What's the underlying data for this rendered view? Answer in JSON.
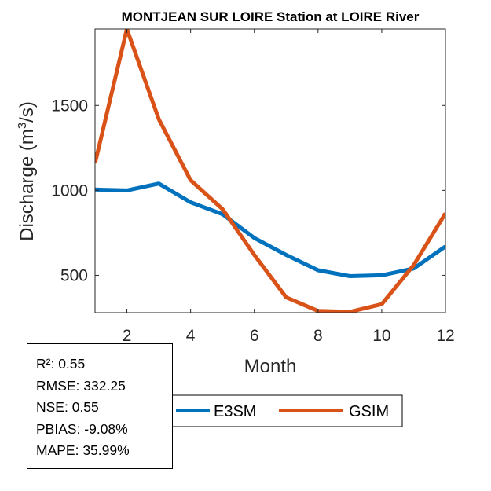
{
  "chart_data": {
    "type": "line",
    "title": "MONTJEAN SUR LOIRE  Station at  LOIRE  River",
    "xlabel": "Month",
    "ylabel": "Discharge (m",
    "ylabel_sup": "3",
    "ylabel_end": "/s)",
    "xlim": [
      1,
      12
    ],
    "ylim": [
      280,
      1950
    ],
    "x": [
      1,
      2,
      3,
      4,
      5,
      6,
      7,
      8,
      9,
      10,
      11,
      12
    ],
    "xticks": [
      2,
      4,
      6,
      8,
      10,
      12
    ],
    "yticks": [
      500,
      1000,
      1500
    ],
    "grid": false,
    "legend_position": "bottom",
    "series": [
      {
        "name": "E3SM",
        "color": "#0072BD",
        "values": [
          1005,
          1000,
          1040,
          930,
          860,
          720,
          620,
          530,
          495,
          500,
          540,
          670
        ]
      },
      {
        "name": "GSIM",
        "color": "#D95319",
        "values": [
          1160,
          1950,
          1420,
          1060,
          890,
          620,
          370,
          290,
          285,
          330,
          560,
          865
        ]
      }
    ]
  },
  "stats": {
    "r2": "R²: 0.55",
    "rmse": "RMSE: 332.25",
    "nse": "NSE: 0.55",
    "pbias": "PBIAS: -9.08%",
    "mape": "MAPE: 35.99%"
  }
}
